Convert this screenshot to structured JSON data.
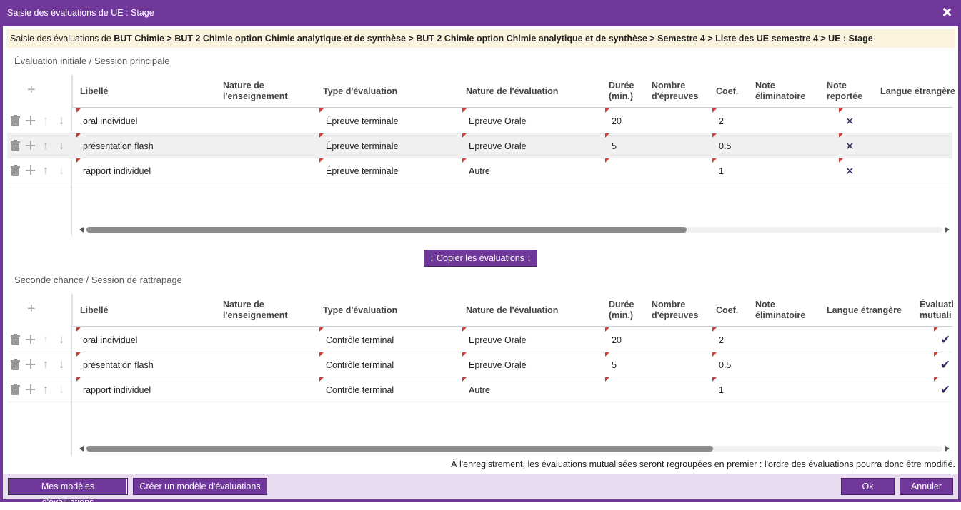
{
  "dialog": {
    "title": "Saisie des évaluations de UE : Stage",
    "breadcrumb_prefix": "Saisie des évaluations de ",
    "breadcrumb_path": "BUT Chimie > BUT 2 Chimie option Chimie analytique et de synthèse > BUT 2 Chimie option Chimie analytique et de synthèse > Semestre 4 > Liste des UE semestre 4 > UE : Stage"
  },
  "section1": {
    "title": "Évaluation initiale / Session principale",
    "headers": {
      "libelle": "Libellé",
      "nature_ens_1": "Nature de",
      "nature_ens_2": "l'enseignement",
      "type_eval": "Type d'évaluation",
      "nature_eval": "Nature de l'évaluation",
      "duree_1": "Durée",
      "duree_2": "(min.)",
      "nb_epreuves_1": "Nombre",
      "nb_epreuves_2": "d'épreuves",
      "coef": "Coef.",
      "note_elim_1": "Note",
      "note_elim_2": "éliminatoire",
      "note_rep_1": "Note",
      "note_rep_2": "reportée",
      "langue": "Langue étrangère"
    },
    "rows": [
      {
        "libelle": "oral individuel",
        "type": "Épreuve terminale",
        "nature": "Epreuve Orale",
        "duree": "20",
        "coef": "2",
        "reportee": "✕"
      },
      {
        "libelle": "présentation flash",
        "type": "Épreuve terminale",
        "nature": "Epreuve Orale",
        "duree": "5",
        "coef": "0.5",
        "reportee": "✕"
      },
      {
        "libelle": "rapport individuel",
        "type": "Épreuve terminale",
        "nature": "Autre",
        "duree": "",
        "coef": "1",
        "reportee": "✕"
      }
    ]
  },
  "copy_button": "↓ Copier les évaluations ↓",
  "section2": {
    "title": "Seconde chance / Session de rattrapage",
    "headers": {
      "libelle": "Libellé",
      "nature_ens_1": "Nature de",
      "nature_ens_2": "l'enseignement",
      "type_eval": "Type d'évaluation",
      "nature_eval": "Nature de l'évaluation",
      "duree_1": "Durée",
      "duree_2": "(min.)",
      "nb_epreuves_1": "Nombre",
      "nb_epreuves_2": "d'épreuves",
      "coef": "Coef.",
      "note_elim_1": "Note",
      "note_elim_2": "éliminatoire",
      "langue": "Langue étrangère",
      "mutualisee_1": "Évaluati",
      "mutualisee_2": "mutuali"
    },
    "rows": [
      {
        "libelle": "oral individuel",
        "type": "Contrôle terminal",
        "nature": "Epreuve Orale",
        "duree": "20",
        "coef": "2",
        "mutualisee": "✔"
      },
      {
        "libelle": "présentation flash",
        "type": "Contrôle terminal",
        "nature": "Epreuve Orale",
        "duree": "5",
        "coef": "0.5",
        "mutualisee": "✔"
      },
      {
        "libelle": "rapport individuel",
        "type": "Contrôle terminal",
        "nature": "Autre",
        "duree": "",
        "coef": "1",
        "mutualisee": "✔"
      }
    ]
  },
  "footnote": "À l'enregistrement, les évaluations mutualisées seront regroupées en premier : l'ordre des évaluations pourra donc être modifié.",
  "footer": {
    "my_models": "Mes modèles d'évaluations",
    "create_model": "Créer un modèle d'évaluations",
    "ok": "Ok",
    "cancel": "Annuler"
  },
  "colors": {
    "accent": "#70389a",
    "footer_bg": "#e9dcf0",
    "breadcrumb_bg": "#fbf3dd",
    "flag": "#d63b3b"
  }
}
